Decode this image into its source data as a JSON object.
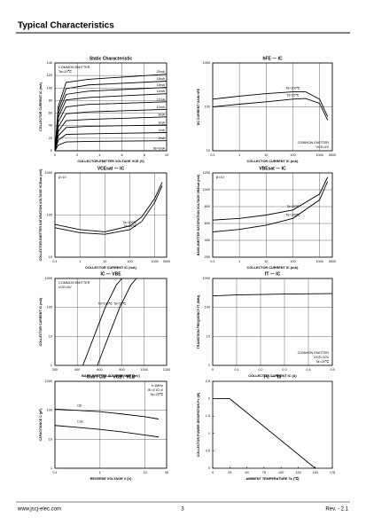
{
  "header": {
    "title": "Typical Characteristics"
  },
  "footer": {
    "website": "www.jscj-elec.com",
    "page": "3",
    "revision": "Rev. - 2.1"
  },
  "charts": [
    {
      "type": "line",
      "title": "Static Characteristic",
      "xlabel": "COLLECTOR-EMITTER VOLTAGE  VCE  (V)",
      "ylabel": "COLLECTOR CURRENT  IC  (mA)",
      "xlim": [
        0,
        10
      ],
      "ylim": [
        0,
        140
      ],
      "xticks": [
        0,
        2,
        4,
        6,
        8,
        10
      ],
      "yticks": [
        0,
        20,
        40,
        60,
        80,
        100,
        120,
        140
      ],
      "xlog": false,
      "ylog": false,
      "annotations": [
        "COMMON EMITTER",
        "Ta=25℃"
      ],
      "annotation_corner": "upper left",
      "label_side": "right",
      "color": "#000000",
      "x": [
        0,
        0.3,
        1,
        3,
        10
      ],
      "series": [
        {
          "name": "20mA",
          "values": [
            0,
            71,
            109,
            114,
            122
          ]
        },
        {
          "name": "18mA",
          "values": [
            0,
            65,
            99,
            105,
            111
          ]
        },
        {
          "name": "16mA",
          "values": [
            0,
            59,
            90,
            95,
            101
          ]
        },
        {
          "name": "14mA",
          "values": [
            0,
            53,
            81,
            85,
            91
          ]
        },
        {
          "name": "12mA",
          "values": [
            0,
            46,
            70,
            74,
            78
          ]
        },
        {
          "name": "10mA",
          "values": [
            0,
            38,
            59,
            62,
            66
          ]
        },
        {
          "name": "8mA",
          "values": [
            0,
            31,
            48,
            50,
            54
          ]
        },
        {
          "name": "6mA",
          "values": [
            0,
            24,
            37,
            39,
            41
          ]
        },
        {
          "name": "4mA",
          "values": [
            0,
            17,
            26,
            27,
            29
          ]
        },
        {
          "name": "2mA",
          "values": [
            0,
            9,
            14,
            15,
            16
          ]
        },
        {
          "name": "IB=0mA",
          "values": [
            0,
            0,
            0,
            0,
            0
          ]
        }
      ]
    },
    {
      "type": "line",
      "title": "hFE  —  IC",
      "xlabel": "COLLECTOR CURRENT  IC  (mA)",
      "ylabel": "DC CURRENT GAIN  hFE",
      "xlim": [
        0.1,
        3000
      ],
      "ylim": [
        10,
        1000
      ],
      "xticks": [
        0.1,
        1,
        10,
        100,
        1000,
        3000
      ],
      "yticks": [
        10,
        100,
        1000
      ],
      "xlog": true,
      "ylog": true,
      "annotations": [
        "COMMON EMITTER",
        "VCE=6V"
      ],
      "annotation_corner": "lower right",
      "label_side": "middle",
      "color": "#000000",
      "x": [
        0.1,
        1,
        10,
        100,
        300,
        1000,
        2000
      ],
      "series": [
        {
          "name": "Ta=100℃",
          "values": [
            150,
            175,
            200,
            220,
            220,
            150,
            60
          ]
        },
        {
          "name": "Ta=25℃",
          "values": [
            100,
            115,
            130,
            150,
            155,
            120,
            50
          ]
        }
      ]
    },
    {
      "type": "line",
      "title": "VCEsat  —  IC",
      "xlabel": "COLLECTOR CURRENT  IC  (mA)",
      "ylabel": "COLLECTOR-EMITTER SATURATION VOLTAGE  VCEsat  (mV)",
      "xlim": [
        0.1,
        3000
      ],
      "ylim": [
        10,
        1000
      ],
      "xticks": [
        0.1,
        1,
        10,
        100,
        1000,
        3000
      ],
      "yticks": [
        10,
        100,
        1000
      ],
      "xlog": true,
      "ylog": true,
      "annotations": [
        "β=10"
      ],
      "annotation_corner": "upper left",
      "label_side": "middle",
      "color": "#000000",
      "x": [
        0.1,
        1,
        10,
        100,
        300,
        1000,
        2000
      ],
      "series": [
        {
          "name": "Ta=100℃",
          "values": [
            60,
            45,
            40,
            55,
            90,
            250,
            600
          ]
        },
        {
          "name": "Ta=25℃",
          "values": [
            50,
            38,
            35,
            45,
            70,
            200,
            500
          ]
        }
      ]
    },
    {
      "type": "line",
      "title": "VBEsat  —  IC",
      "xlabel": "COLLECTOR CURRENT  IC  (mA)",
      "ylabel": "BASE-EMITTER SATURATION VOLTAGE  VBEsat  (mV)",
      "xlim": [
        0.1,
        3000
      ],
      "ylim": [
        200,
        1200
      ],
      "xticks": [
        0.1,
        1,
        10,
        100,
        1000,
        3000
      ],
      "yticks": [
        200,
        400,
        600,
        800,
        1000,
        1200
      ],
      "xlog": true,
      "ylog": false,
      "annotations": [
        "β=10"
      ],
      "annotation_corner": "upper left",
      "label_side": "middle",
      "color": "#000000",
      "x": [
        0.1,
        1,
        10,
        100,
        1000,
        2000
      ],
      "series": [
        {
          "name": "Ta=25℃",
          "values": [
            640,
            660,
            700,
            760,
            950,
            1150
          ]
        },
        {
          "name": "Ta=100℃",
          "values": [
            500,
            530,
            580,
            660,
            880,
            1100
          ]
        }
      ]
    },
    {
      "type": "line",
      "title": "IC  —  VBE",
      "xlabel": "BASE-EMITTER VOLTAGE  VBE  (mV)",
      "ylabel": "COLLECTOR CURRENT  IC  (mA)",
      "xlim": [
        200,
        1200
      ],
      "ylim": [
        1,
        1000
      ],
      "xticks": [
        200,
        400,
        600,
        800,
        1000,
        1200
      ],
      "yticks": [
        1,
        10,
        100,
        1000
      ],
      "xlog": false,
      "ylog": true,
      "annotations": [
        "COMMON EMITTER",
        "VCE=6V"
      ],
      "annotation_corner": "upper left",
      "label_side": "middle",
      "color": "#000000",
      "series": [
        {
          "name": "Ta=100℃",
          "x": [
            450,
            550,
            650,
            750,
            800
          ],
          "values": [
            1,
            10,
            100,
            600,
            1000
          ]
        },
        {
          "name": "Ta=25℃",
          "x": [
            580,
            680,
            780,
            880,
            930
          ],
          "values": [
            1,
            10,
            100,
            600,
            1000
          ]
        }
      ]
    },
    {
      "type": "line",
      "title": "fT  —  IC",
      "xlabel": "COLLECTOR CURRENT  IC  (A)",
      "ylabel": "TRANSITION FREQUENCY  fT  (MHz)",
      "xlim": [
        0,
        0.5
      ],
      "ylim": [
        1,
        1000
      ],
      "xticks": [
        0,
        0.1,
        0.2,
        0.3,
        0.4,
        0.5
      ],
      "yticks": [
        1,
        10,
        100,
        1000
      ],
      "xlog": false,
      "ylog": true,
      "annotations": [
        "COMMON EMITTER",
        "VCE=10V",
        "Ta=25℃"
      ],
      "annotation_corner": "lower right",
      "label_side": "none",
      "color": "#000000",
      "x": [
        0,
        0.1,
        0.2,
        0.3,
        0.4,
        0.5
      ],
      "series": [
        {
          "values": [
            250,
            270,
            280,
            290,
            295,
            300
          ]
        }
      ]
    },
    {
      "type": "line",
      "title": "Cob / Cib  —  VCB / VEB",
      "xlabel": "REVERSE VOLTAGE  V  (V)",
      "ylabel": "CAPACITANCE  C  (pF)",
      "xlim": [
        0.1,
        30
      ],
      "ylim": [
        1,
        1000
      ],
      "xticks": [
        0.1,
        1,
        10,
        30
      ],
      "yticks": [
        1,
        10,
        100,
        1000
      ],
      "xlog": true,
      "ylog": true,
      "annotations": [
        "f=1MHz",
        "IE=0  IC=0",
        "Ta=25℃"
      ],
      "annotation_corner": "upper right",
      "label_side": "start",
      "color": "#000000",
      "x": [
        0.1,
        0.3,
        1,
        3,
        10,
        20
      ],
      "series": [
        {
          "name": "Cib",
          "values": [
            110,
            100,
            90,
            75,
            60,
            50
          ]
        },
        {
          "name": "Cob",
          "values": [
            30,
            26,
            22,
            18,
            14,
            12
          ]
        }
      ]
    },
    {
      "type": "line",
      "title": "Pc  —  Ta",
      "xlabel": "AMBIENT TEMPERATURE  Ta  (℃)",
      "ylabel": "COLLECTOR POWER DISSIPATION  Pc  (W)",
      "xlim": [
        0,
        175
      ],
      "ylim": [
        0,
        2.5
      ],
      "xticks": [
        0,
        25,
        50,
        75,
        100,
        125,
        150,
        175
      ],
      "yticks": [
        0,
        0.5,
        1,
        1.5,
        2,
        2.5
      ],
      "xlog": false,
      "ylog": false,
      "annotations": [],
      "annotation_corner": "upper right",
      "label_side": "none",
      "color": "#000000",
      "grid": false,
      "x": [
        0,
        25,
        150
      ],
      "series": [
        {
          "values": [
            2,
            2,
            0
          ]
        }
      ]
    }
  ]
}
